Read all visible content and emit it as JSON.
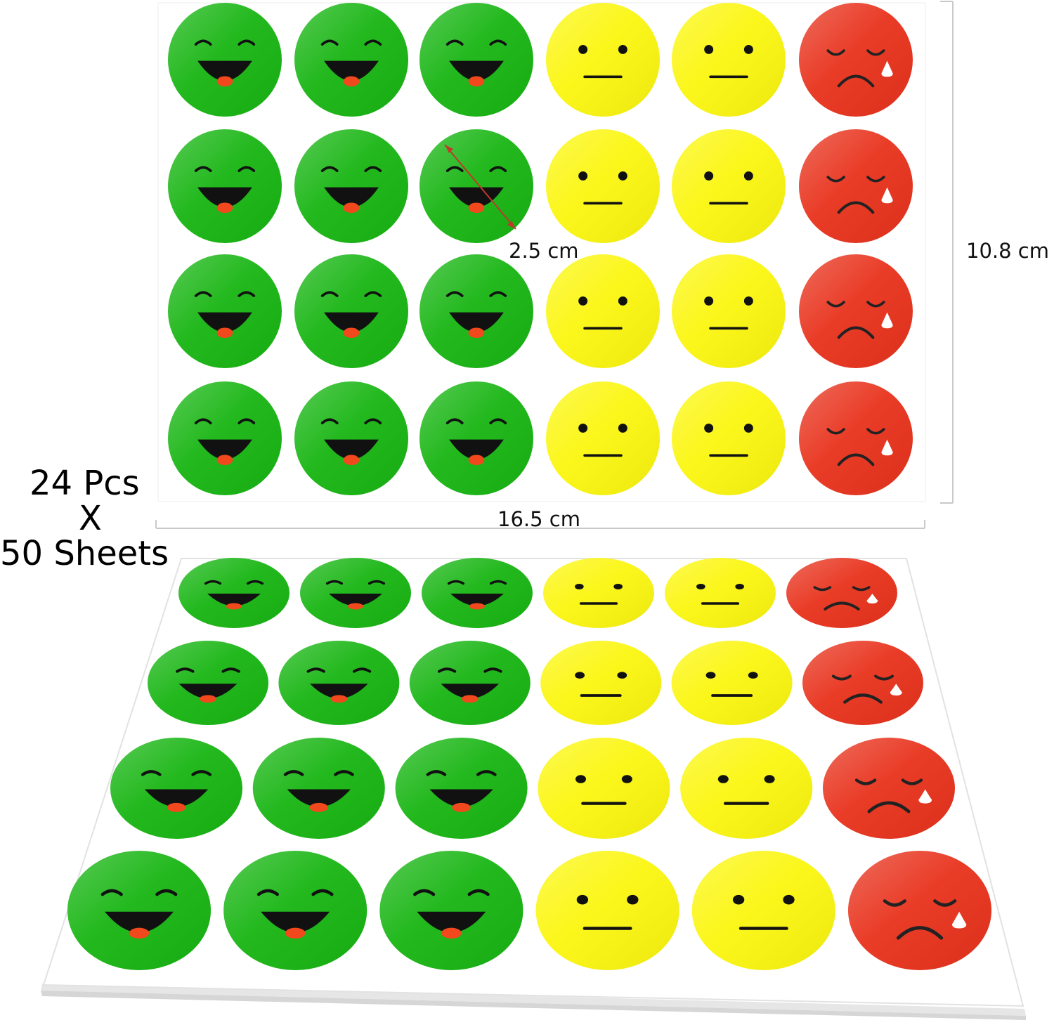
{
  "dimensions": {
    "diameter": "2.5 cm",
    "height": "10.8 cm",
    "width": "16.5 cm"
  },
  "quantity": {
    "pieces": "24 Pcs",
    "times": "X",
    "sheets": "50 Sheets"
  },
  "colors": {
    "happy": "#17b512",
    "neutral": "#fbf60f",
    "sad": "#e8321c",
    "mouth": "#111111",
    "tongue": "#f2481e",
    "tear": "#ffffff",
    "sheet": "#ffffff",
    "sheet_edge": "#e3e3e3",
    "dimension_line": "#c9c9c9",
    "arrow": "#c0392b"
  },
  "sheet_layout": {
    "rows": 4,
    "columns": [
      "happy",
      "happy",
      "happy",
      "neutral",
      "neutral",
      "sad"
    ]
  }
}
